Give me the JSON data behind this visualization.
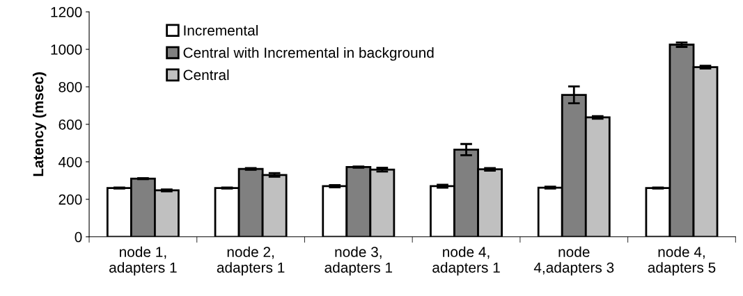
{
  "chart_data": {
    "type": "bar",
    "ylabel": "Latency (msec)",
    "categories": [
      "node 1,\nadapters 1",
      "node 2,\nadapters 1",
      "node 3,\nadapters 1",
      "node 4,\nadapters 1",
      "node\n4,adapters 3",
      "node 4,\nadapters 5"
    ],
    "series": [
      {
        "name": "Incremental",
        "color": "#ffffff",
        "values": [
          260,
          260,
          270,
          270,
          262,
          260
        ],
        "errors": [
          3,
          3,
          6,
          8,
          5,
          3
        ]
      },
      {
        "name": "Central with Incremental in background",
        "color": "#808080",
        "values": [
          310,
          362,
          372,
          465,
          757,
          1025
        ],
        "errors": [
          3,
          5,
          3,
          30,
          45,
          12
        ]
      },
      {
        "name": "Central",
        "color": "#c0c0c0",
        "values": [
          248,
          330,
          358,
          360,
          637,
          905
        ],
        "errors": [
          5,
          10,
          10,
          7,
          7,
          7
        ]
      }
    ],
    "ylim": [
      0,
      1200
    ],
    "yticks": [
      0,
      200,
      400,
      600,
      800,
      1000,
      1200
    ],
    "grid": false,
    "legend": "top left"
  }
}
